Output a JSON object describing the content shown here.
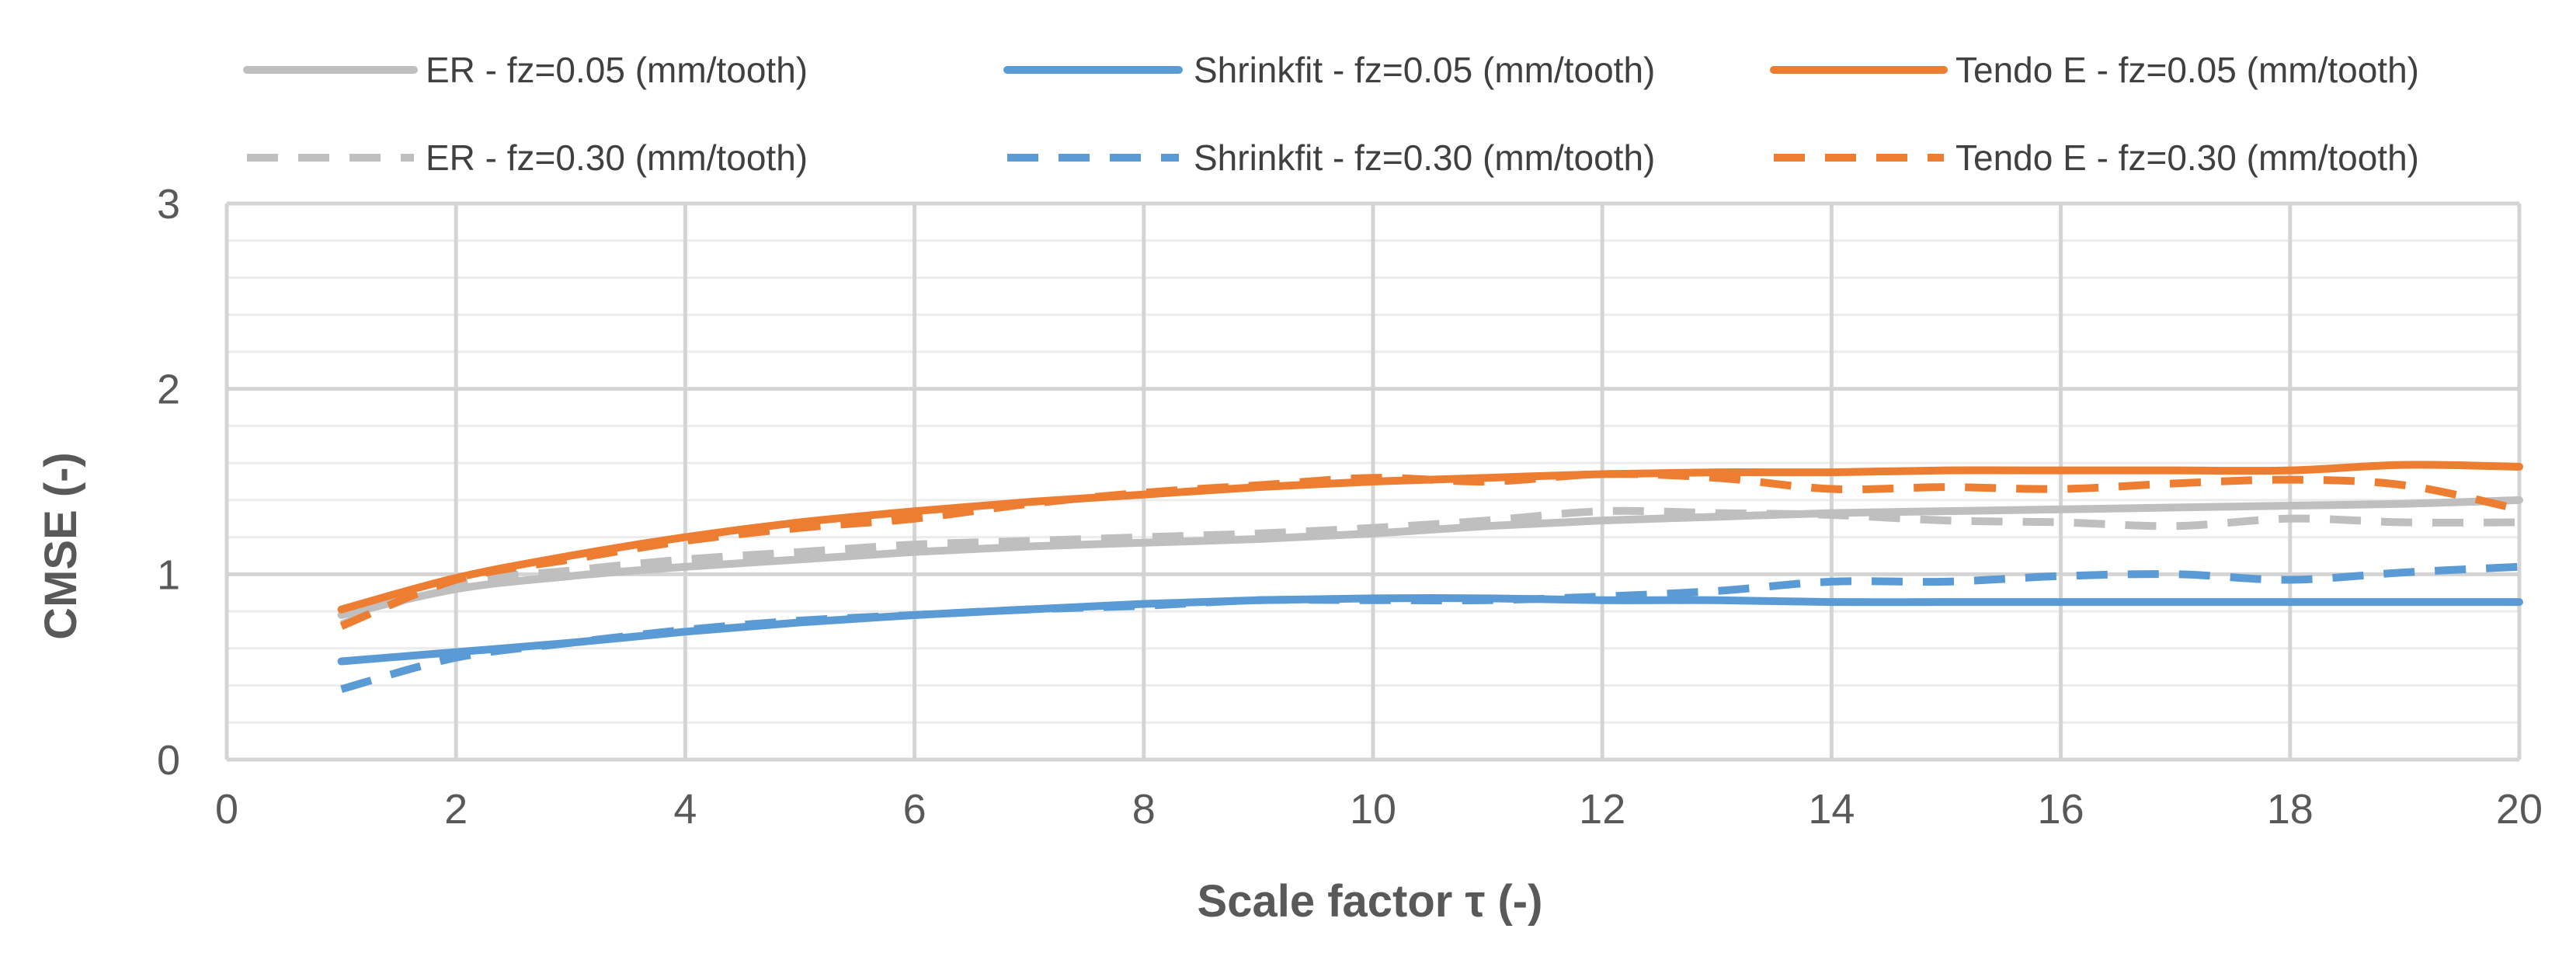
{
  "chart_data": {
    "type": "line",
    "xlabel": "Scale factor τ (-)",
    "ylabel": "CMSE (-)",
    "xlim": [
      0,
      20
    ],
    "ylim": [
      0,
      3
    ],
    "x_ticks": [
      "0",
      "2",
      "4",
      "6",
      "8",
      "10",
      "12",
      "14",
      "16",
      "18",
      "20"
    ],
    "y_ticks": [
      "0",
      "1",
      "2",
      "3"
    ],
    "grid": "on",
    "legend_position": "top",
    "series": [
      {
        "name": "ER - fz=0.05 (mm/tooth)",
        "color": "#BFBFBF",
        "dash": "solid",
        "x": [
          1,
          2,
          3,
          4,
          5,
          6,
          7,
          8,
          9,
          10,
          11,
          12,
          13,
          14,
          15,
          16,
          17,
          18,
          19,
          20
        ],
        "y": [
          0.78,
          0.92,
          0.99,
          1.04,
          1.08,
          1.12,
          1.15,
          1.17,
          1.19,
          1.22,
          1.26,
          1.29,
          1.31,
          1.33,
          1.34,
          1.35,
          1.36,
          1.37,
          1.38,
          1.4
        ]
      },
      {
        "name": "Shrinkfit - fz=0.05 (mm/tooth)",
        "color": "#5B9BD5",
        "dash": "solid",
        "x": [
          1,
          2,
          3,
          4,
          5,
          6,
          7,
          8,
          9,
          10,
          11,
          12,
          13,
          14,
          15,
          16,
          17,
          18,
          19,
          20
        ],
        "y": [
          0.53,
          0.58,
          0.63,
          0.69,
          0.74,
          0.78,
          0.81,
          0.84,
          0.86,
          0.87,
          0.87,
          0.86,
          0.86,
          0.85,
          0.85,
          0.85,
          0.85,
          0.85,
          0.85,
          0.85
        ]
      },
      {
        "name": "Tendo E - fz=0.05 (mm/tooth)",
        "color": "#ED7D31",
        "dash": "solid",
        "x": [
          1,
          2,
          3,
          4,
          5,
          6,
          7,
          8,
          9,
          10,
          11,
          12,
          13,
          14,
          15,
          16,
          17,
          18,
          19,
          20
        ],
        "y": [
          0.81,
          0.98,
          1.1,
          1.2,
          1.28,
          1.34,
          1.39,
          1.43,
          1.47,
          1.5,
          1.52,
          1.54,
          1.55,
          1.55,
          1.56,
          1.56,
          1.56,
          1.56,
          1.59,
          1.58
        ]
      },
      {
        "name": "ER - fz=0.30 (mm/tooth)",
        "color": "#BFBFBF",
        "dash": "dashed",
        "x": [
          1,
          2,
          3,
          4,
          5,
          6,
          7,
          8,
          9,
          10,
          11,
          12,
          13,
          14,
          15,
          16,
          17,
          18,
          19,
          20
        ],
        "y": [
          0.73,
          0.95,
          1.02,
          1.08,
          1.12,
          1.16,
          1.18,
          1.2,
          1.22,
          1.25,
          1.29,
          1.34,
          1.33,
          1.32,
          1.29,
          1.28,
          1.26,
          1.3,
          1.28,
          1.28
        ]
      },
      {
        "name": "Shrinkfit - fz=0.30 (mm/tooth)",
        "color": "#5B9BD5",
        "dash": "dashed",
        "x": [
          1,
          2,
          3,
          4,
          5,
          6,
          7,
          8,
          9,
          10,
          11,
          12,
          13,
          14,
          15,
          16,
          17,
          18,
          19,
          20
        ],
        "y": [
          0.38,
          0.55,
          0.63,
          0.7,
          0.75,
          0.78,
          0.81,
          0.83,
          0.86,
          0.86,
          0.86,
          0.88,
          0.91,
          0.96,
          0.96,
          0.99,
          1.0,
          0.97,
          1.01,
          1.04
        ]
      },
      {
        "name": "Tendo E - fz=0.30 (mm/tooth)",
        "color": "#ED7D31",
        "dash": "dashed",
        "x": [
          1,
          2,
          3,
          4,
          5,
          6,
          7,
          8,
          9,
          10,
          11,
          12,
          13,
          14,
          15,
          16,
          17,
          18,
          19,
          20
        ],
        "y": [
          0.72,
          0.97,
          1.08,
          1.18,
          1.25,
          1.3,
          1.38,
          1.44,
          1.48,
          1.52,
          1.5,
          1.54,
          1.52,
          1.46,
          1.47,
          1.46,
          1.49,
          1.51,
          1.48,
          1.35
        ]
      }
    ]
  }
}
